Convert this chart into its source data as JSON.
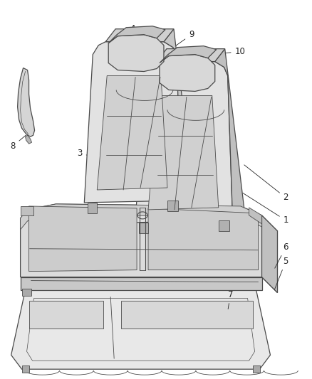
{
  "background_color": "#ffffff",
  "line_color": "#4a4a4a",
  "label_color": "#222222",
  "label_fontsize": 8.5,
  "fig_width": 4.38,
  "fig_height": 5.33,
  "dpi": 100
}
